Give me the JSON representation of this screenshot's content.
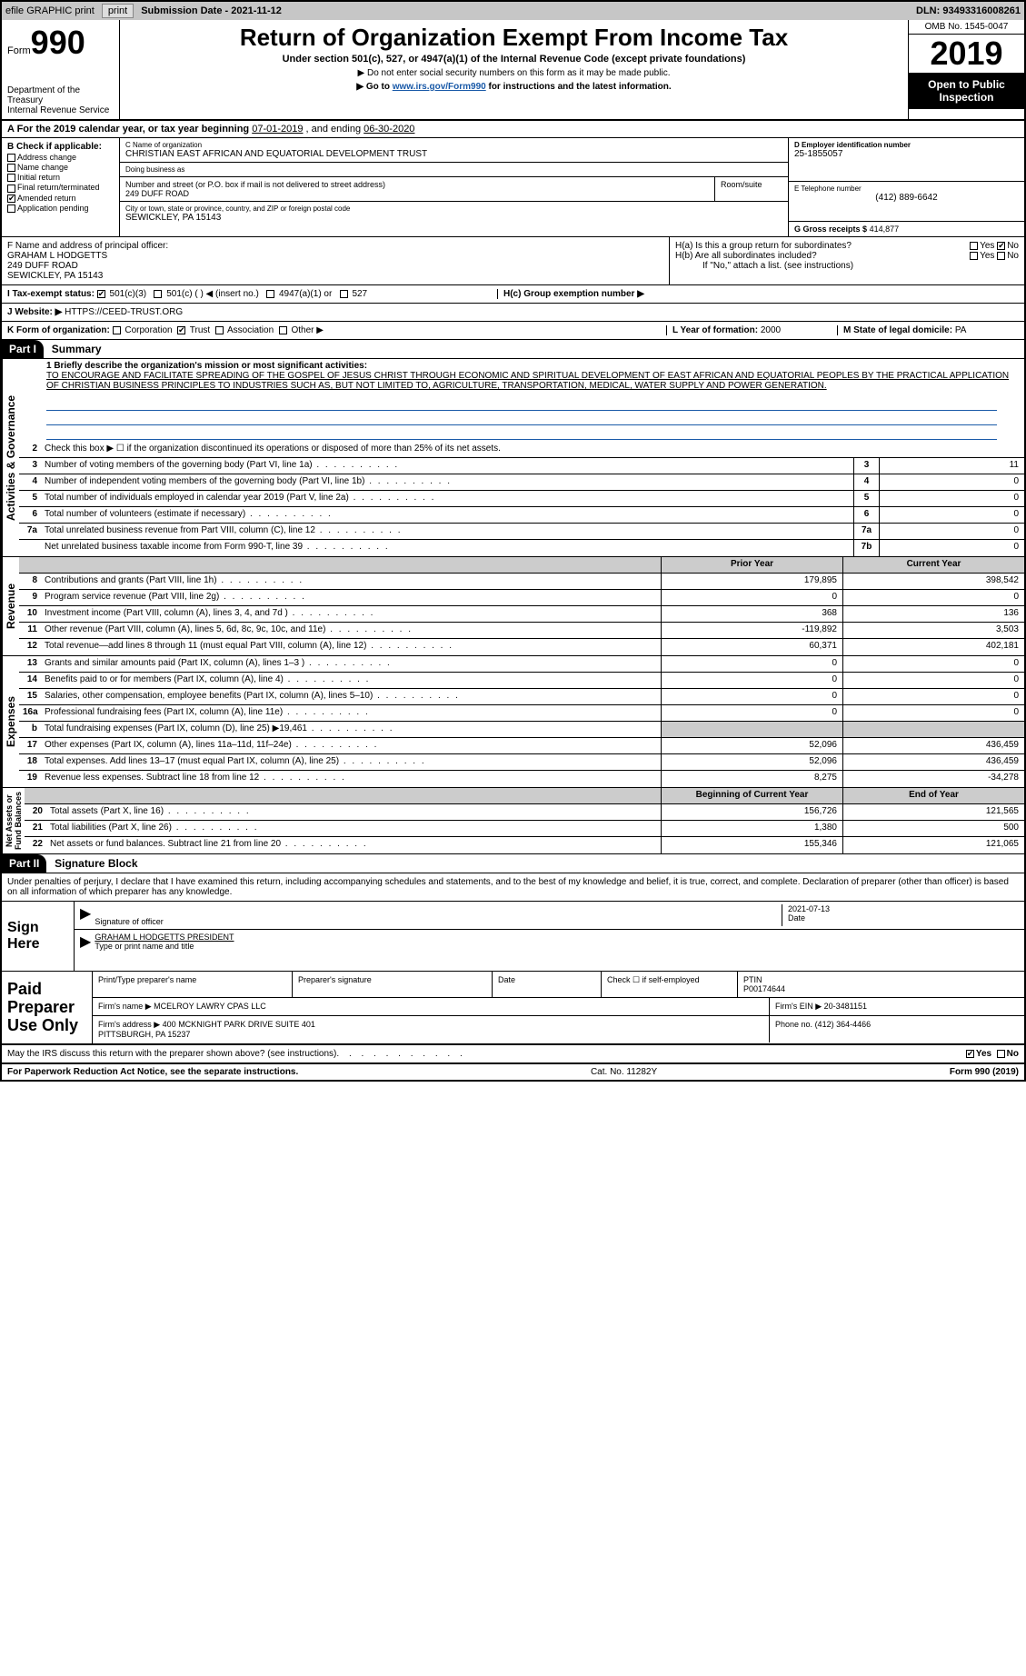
{
  "topbar": {
    "efile": "efile GRAPHIC print",
    "subdate_lbl": "Submission Date - 2021-11-12",
    "dln": "DLN: 93493316008261"
  },
  "header": {
    "form_word": "Form",
    "form_num": "990",
    "dept": "Department of the Treasury\nInternal Revenue Service",
    "title": "Return of Organization Exempt From Income Tax",
    "sub": "Under section 501(c), 527, or 4947(a)(1) of the Internal Revenue Code (except private foundations)",
    "sub2": "▶ Do not enter social security numbers on this form as it may be made public.",
    "goto_pre": "▶ Go to ",
    "goto_link": "www.irs.gov/Form990",
    "goto_post": " for instructions and the latest information.",
    "omb": "OMB No. 1545-0047",
    "year": "2019",
    "open": "Open to Public Inspection"
  },
  "period": {
    "text_a": "A  For the 2019 calendar year, or tax year beginning ",
    "begin": "07-01-2019",
    "text_b": " , and ending ",
    "end": "06-30-2020"
  },
  "B": {
    "hdr": "B Check if applicable:",
    "items": [
      "Address change",
      "Name change",
      "Initial return",
      "Final return/terminated",
      "Amended return",
      "Application pending"
    ],
    "checked_idx": 4
  },
  "C": {
    "name_lbl": "C Name of organization",
    "name": "CHRISTIAN EAST AFRICAN AND EQUATORIAL DEVELOPMENT TRUST",
    "dba_lbl": "Doing business as",
    "dba": "",
    "addr_lbl": "Number and street (or P.O. box if mail is not delivered to street address)",
    "addr": "249 DUFF ROAD",
    "room_lbl": "Room/suite",
    "city_lbl": "City or town, state or province, country, and ZIP or foreign postal code",
    "city": "SEWICKLEY, PA  15143"
  },
  "D": {
    "lbl": "D Employer identification number",
    "val": "25-1855057"
  },
  "E": {
    "lbl": "E Telephone number",
    "val": "(412) 889-6642"
  },
  "G": {
    "lbl": "G Gross receipts $",
    "val": "414,877"
  },
  "F": {
    "lbl": "F  Name and address of principal officer:",
    "name": "GRAHAM L HODGETTS",
    "addr": "249 DUFF ROAD",
    "city": "SEWICKLEY, PA  15143"
  },
  "H": {
    "a": "H(a)  Is this a group return for subordinates?",
    "b": "H(b)  Are all subordinates included?",
    "b_note": "If \"No,\" attach a list. (see instructions)",
    "c": "H(c)  Group exemption number ▶",
    "yes": "Yes",
    "no": "No"
  },
  "I": {
    "lbl": "I   Tax-exempt status:",
    "opts": [
      "501(c)(3)",
      "501(c) (  ) ◀ (insert no.)",
      "4947(a)(1) or",
      "527"
    ]
  },
  "J": {
    "lbl": "J   Website: ▶",
    "val": "HTTPS://CEED-TRUST.ORG"
  },
  "K": {
    "lbl": "K Form of organization:",
    "opts": [
      "Corporation",
      "Trust",
      "Association",
      "Other ▶"
    ],
    "checked_idx": 1
  },
  "L": {
    "lbl": "L Year of formation:",
    "val": "2000"
  },
  "M": {
    "lbl": "M State of legal domicile:",
    "val": "PA"
  },
  "partI": {
    "num": "Part I",
    "title": "Summary"
  },
  "summary": {
    "l1_lbl": "1  Briefly describe the organization's mission or most significant activities:",
    "l1_text": "TO ENCOURAGE AND FACILITATE SPREADING OF THE GOSPEL OF JESUS CHRIST THROUGH ECONOMIC AND SPIRITUAL DEVELOPMENT OF EAST AFRICAN AND EQUATORIAL PEOPLES BY THE PRACTICAL APPLICATION OF CHRISTIAN BUSINESS PRINCIPLES TO INDUSTRIES SUCH AS, BUT NOT LIMITED TO, AGRICULTURE, TRANSPORTATION, MEDICAL, WATER SUPPLY AND POWER GENERATION.",
    "l2": "Check this box ▶ ☐ if the organization discontinued its operations or disposed of more than 25% of its net assets.",
    "rows_ag": [
      {
        "n": "3",
        "t": "Number of voting members of the governing body (Part VI, line 1a)",
        "c": "3",
        "v": "11"
      },
      {
        "n": "4",
        "t": "Number of independent voting members of the governing body (Part VI, line 1b)",
        "c": "4",
        "v": "0"
      },
      {
        "n": "5",
        "t": "Total number of individuals employed in calendar year 2019 (Part V, line 2a)",
        "c": "5",
        "v": "0"
      },
      {
        "n": "6",
        "t": "Total number of volunteers (estimate if necessary)",
        "c": "6",
        "v": "0"
      },
      {
        "n": "7a",
        "t": "Total unrelated business revenue from Part VIII, column (C), line 12",
        "c": "7a",
        "v": "0"
      },
      {
        "n": "",
        "t": "Net unrelated business taxable income from Form 990-T, line 39",
        "c": "7b",
        "v": "0"
      }
    ],
    "pyr_hdr": "Prior Year",
    "cyr_hdr": "Current Year",
    "rev_rows": [
      {
        "n": "8",
        "t": "Contributions and grants (Part VIII, line 1h)",
        "p": "179,895",
        "c": "398,542"
      },
      {
        "n": "9",
        "t": "Program service revenue (Part VIII, line 2g)",
        "p": "0",
        "c": "0"
      },
      {
        "n": "10",
        "t": "Investment income (Part VIII, column (A), lines 3, 4, and 7d )",
        "p": "368",
        "c": "136"
      },
      {
        "n": "11",
        "t": "Other revenue (Part VIII, column (A), lines 5, 6d, 8c, 9c, 10c, and 11e)",
        "p": "-119,892",
        "c": "3,503"
      },
      {
        "n": "12",
        "t": "Total revenue—add lines 8 through 11 (must equal Part VIII, column (A), line 12)",
        "p": "60,371",
        "c": "402,181"
      }
    ],
    "exp_rows": [
      {
        "n": "13",
        "t": "Grants and similar amounts paid (Part IX, column (A), lines 1–3 )",
        "p": "0",
        "c": "0"
      },
      {
        "n": "14",
        "t": "Benefits paid to or for members (Part IX, column (A), line 4)",
        "p": "0",
        "c": "0"
      },
      {
        "n": "15",
        "t": "Salaries, other compensation, employee benefits (Part IX, column (A), lines 5–10)",
        "p": "0",
        "c": "0"
      },
      {
        "n": "16a",
        "t": "Professional fundraising fees (Part IX, column (A), line 11e)",
        "p": "0",
        "c": "0"
      },
      {
        "n": "b",
        "t": "Total fundraising expenses (Part IX, column (D), line 25) ▶19,461",
        "p": "",
        "c": ""
      },
      {
        "n": "17",
        "t": "Other expenses (Part IX, column (A), lines 11a–11d, 11f–24e)",
        "p": "52,096",
        "c": "436,459"
      },
      {
        "n": "18",
        "t": "Total expenses. Add lines 13–17 (must equal Part IX, column (A), line 25)",
        "p": "52,096",
        "c": "436,459"
      },
      {
        "n": "19",
        "t": "Revenue less expenses. Subtract line 18 from line 12",
        "p": "8,275",
        "c": "-34,278"
      }
    ],
    "na_hdr1": "Beginning of Current Year",
    "na_hdr2": "End of Year",
    "na_rows": [
      {
        "n": "20",
        "t": "Total assets (Part X, line 16)",
        "p": "156,726",
        "c": "121,565"
      },
      {
        "n": "21",
        "t": "Total liabilities (Part X, line 26)",
        "p": "1,380",
        "c": "500"
      },
      {
        "n": "22",
        "t": "Net assets or fund balances. Subtract line 21 from line 20",
        "p": "155,346",
        "c": "121,065"
      }
    ]
  },
  "side": {
    "ag": "Activities & Governance",
    "rev": "Revenue",
    "exp": "Expenses",
    "na": "Net Assets or\nFund Balances"
  },
  "partII": {
    "num": "Part II",
    "title": "Signature Block"
  },
  "sig": {
    "decl": "Under penalties of perjury, I declare that I have examined this return, including accompanying schedules and statements, and to the best of my knowledge and belief, it is true, correct, and complete. Declaration of preparer (other than officer) is based on all information of which preparer has any knowledge.",
    "sign_here": "Sign Here",
    "sig_lbl": "Signature of officer",
    "date_lbl": "Date",
    "date": "2021-07-13",
    "name": "GRAHAM L HODGETTS  PRESIDENT",
    "name_lbl": "Type or print name and title"
  },
  "prep": {
    "label": "Paid Preparer Use Only",
    "pt_name_lbl": "Print/Type preparer's name",
    "pt_name": "",
    "sig_lbl": "Preparer's signature",
    "date_lbl": "Date",
    "se_lbl": "Check ☐ if self-employed",
    "ptin_lbl": "PTIN",
    "ptin": "P00174644",
    "firm_name_lbl": "Firm's name    ▶",
    "firm_name": "MCELROY LAWRY CPAS LLC",
    "firm_ein_lbl": "Firm's EIN ▶",
    "firm_ein": "20-3481151",
    "firm_addr_lbl": "Firm's address ▶",
    "firm_addr": "400 MCKNIGHT PARK DRIVE SUITE 401\nPITTSBURGH, PA  15237",
    "phone_lbl": "Phone no.",
    "phone": "(412) 364-4466"
  },
  "discuss": {
    "text": "May the IRS discuss this return with the preparer shown above? (see instructions)",
    "yes": "Yes",
    "no": "No"
  },
  "footer": {
    "left": "For Paperwork Reduction Act Notice, see the separate instructions.",
    "mid": "Cat. No. 11282Y",
    "right": "Form 990 (2019)"
  }
}
